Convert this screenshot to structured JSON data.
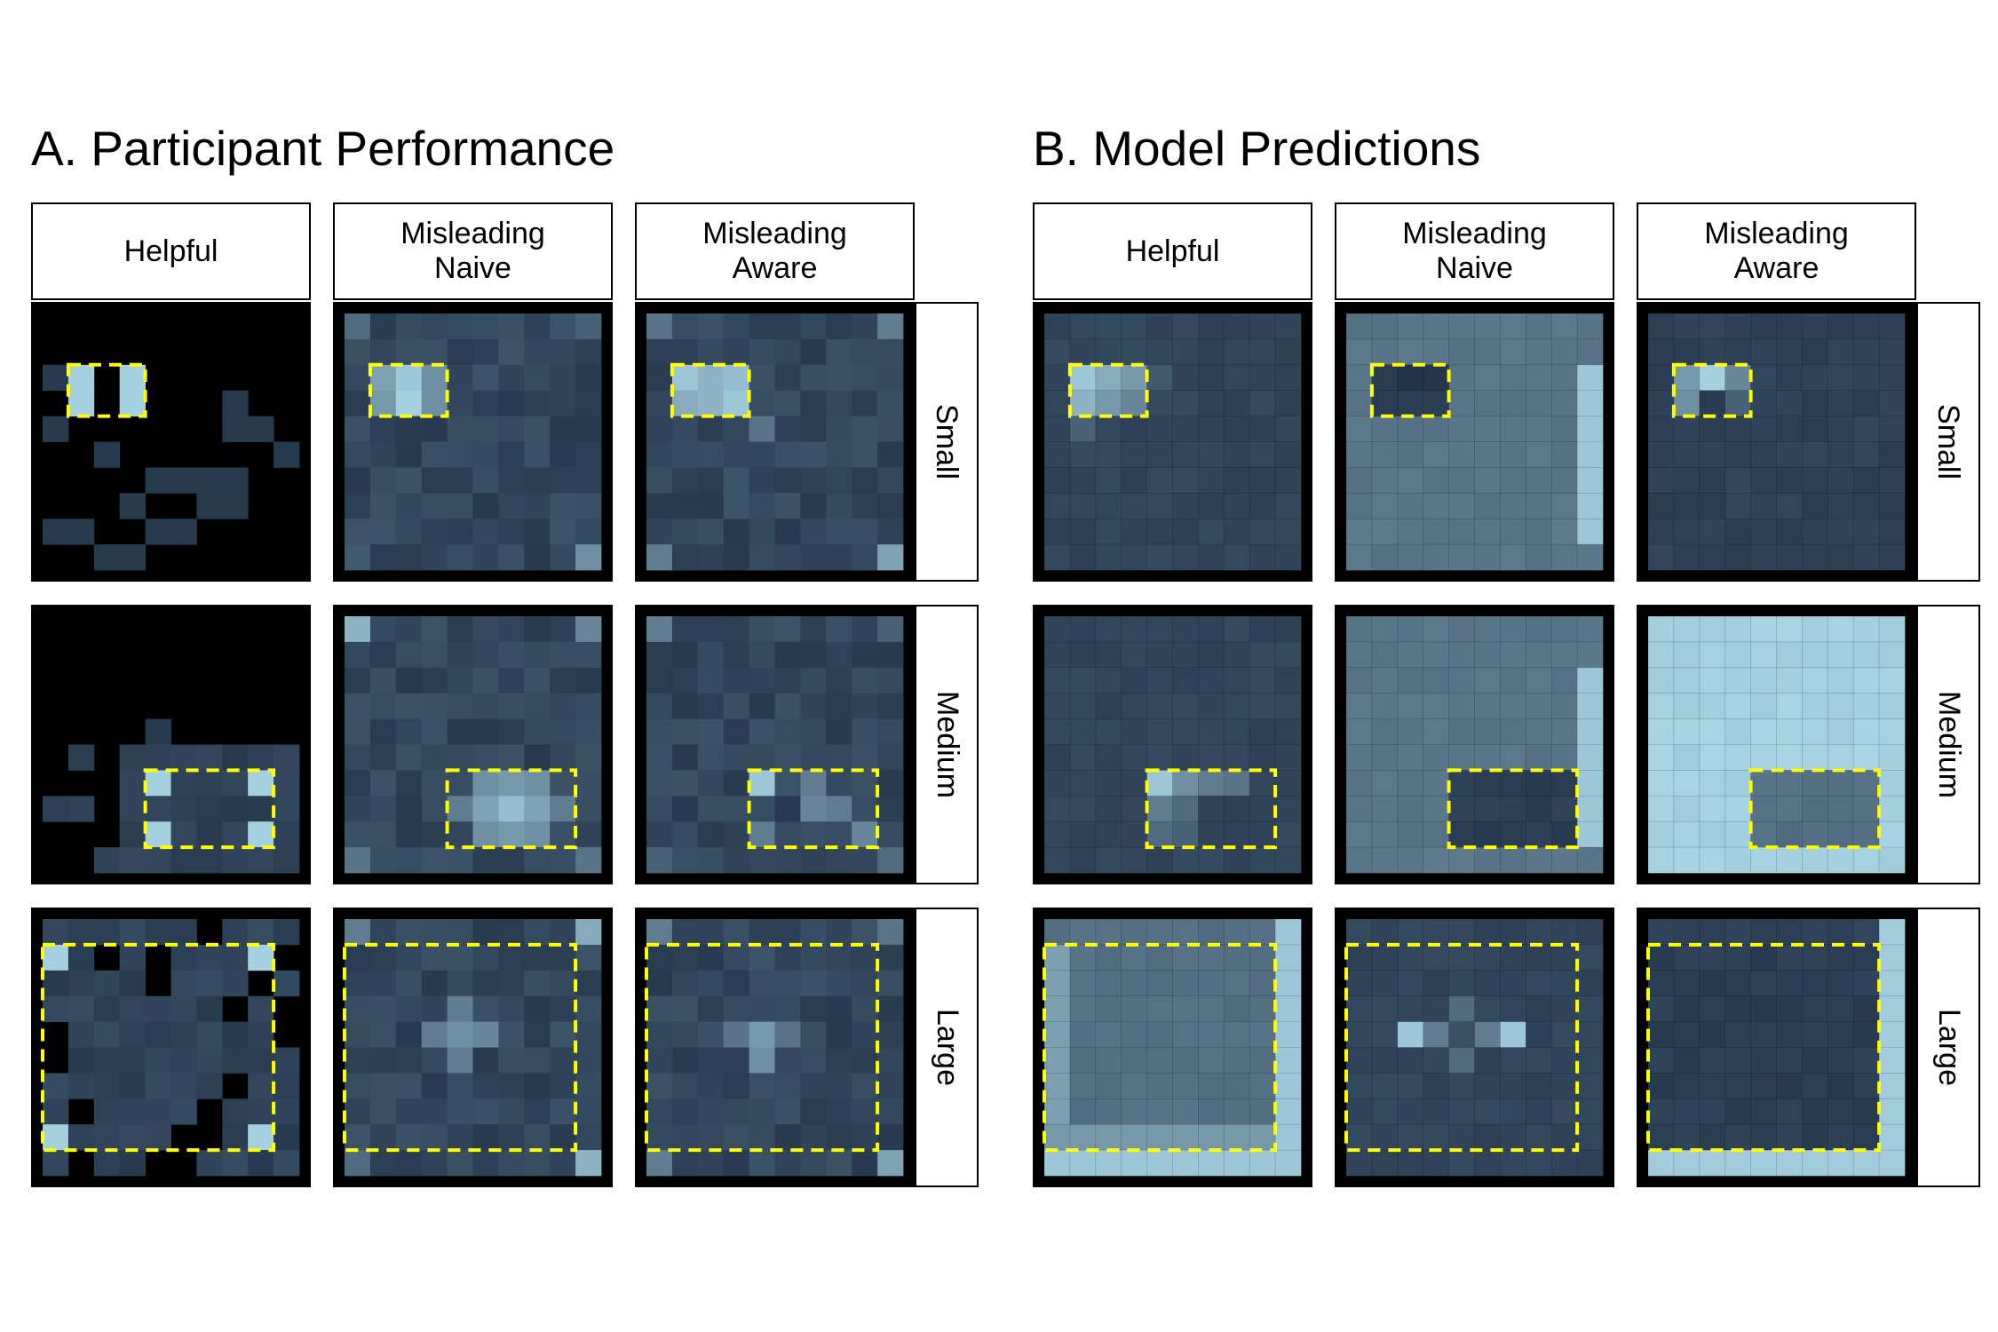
{
  "panels": [
    {
      "title": "A. Participant Performance",
      "columns": [
        "Helpful",
        "Misleading\nNaive",
        "Misleading\nAware"
      ],
      "rows": [
        "Small",
        "Medium",
        "Large"
      ]
    },
    {
      "title": "B. Model Predictions",
      "columns": [
        "Helpful",
        "Misleading\nNaive",
        "Misleading\nAware"
      ],
      "rows": [
        "Small",
        "Medium",
        "Large"
      ]
    }
  ],
  "colors": {
    "background": "#000000",
    "low": "#1a2b40",
    "high": "#b4e2f0",
    "target_outline": "#ffff00",
    "strip_border": "#000000"
  },
  "chart_data": [
    {
      "type": "heatmap",
      "title": "A. Participant Performance",
      "grid": [
        10,
        10
      ],
      "value_note": "cell shading 0 (dark) to 1 (light); null = black",
      "facets": [
        {
          "column": "Helpful",
          "row": "Small",
          "target": {
            "cols": [
              1,
              3
            ],
            "rows": [
              2,
              3
            ]
          },
          "lit": [
            [
              0,
              2
            ],
            [
              1,
              3
            ],
            [
              0,
              4
            ],
            [
              2,
              5
            ],
            [
              4,
              6
            ],
            [
              5,
              6
            ],
            [
              6,
              6
            ],
            [
              3,
              7
            ],
            [
              0,
              8
            ],
            [
              1,
              8
            ],
            [
              5,
              8
            ],
            [
              2,
              9
            ],
            [
              0,
              10
            ],
            [
              7,
              3
            ],
            [
              7,
              4
            ],
            [
              8,
              4
            ],
            [
              9,
              5
            ],
            [
              7,
              6
            ],
            [
              6,
              7
            ],
            [
              7,
              7
            ],
            [
              4,
              8
            ],
            [
              3,
              9
            ]
          ],
          "bright": [
            [
              1,
              2
            ],
            [
              3,
              2
            ],
            [
              1,
              3
            ],
            [
              3,
              3
            ]
          ]
        },
        {
          "column": "Misleading Naive",
          "row": "Small",
          "target": {
            "cols": [
              1,
              3
            ],
            "rows": [
              2,
              3
            ]
          },
          "corners": [
            0.35,
            0.3,
            0.25,
            0.55
          ],
          "peak": [
            [
              1,
              2,
              0.65
            ],
            [
              2,
              2,
              0.85
            ],
            [
              3,
              2,
              0.55
            ],
            [
              1,
              3,
              0.6
            ],
            [
              2,
              3,
              0.9
            ],
            [
              3,
              3,
              0.55
            ]
          ]
        },
        {
          "column": "Misleading Aware",
          "row": "Small",
          "target": {
            "cols": [
              1,
              3
            ],
            "rows": [
              2,
              3
            ]
          },
          "corners": [
            0.4,
            0.45,
            0.45,
            0.65
          ],
          "peak": [
            [
              1,
              2,
              0.85
            ],
            [
              2,
              2,
              0.75
            ],
            [
              3,
              2,
              0.8
            ],
            [
              1,
              3,
              0.7
            ],
            [
              2,
              3,
              0.75
            ],
            [
              3,
              3,
              0.85
            ],
            [
              4,
              4,
              0.4
            ]
          ]
        },
        {
          "column": "Helpful",
          "row": "Medium",
          "target": {
            "cols": [
              4,
              8
            ],
            "rows": [
              6,
              8
            ]
          },
          "sparse": true,
          "bright": [
            [
              4,
              6
            ],
            [
              8,
              6
            ],
            [
              4,
              8
            ],
            [
              8,
              8
            ]
          ]
        },
        {
          "column": "Misleading Naive",
          "row": "Medium",
          "target": {
            "cols": [
              4,
              8
            ],
            "rows": [
              6,
              8
            ]
          },
          "corners": [
            0.75,
            0.5,
            0.4,
            0.4
          ],
          "peak": [
            [
              5,
              6,
              0.55
            ],
            [
              6,
              6,
              0.6
            ],
            [
              7,
              6,
              0.55
            ],
            [
              5,
              7,
              0.65
            ],
            [
              6,
              7,
              0.8
            ],
            [
              7,
              7,
              0.65
            ],
            [
              5,
              8,
              0.55
            ],
            [
              6,
              8,
              0.6
            ],
            [
              7,
              8,
              0.55
            ],
            [
              4,
              7,
              0.45
            ],
            [
              8,
              7,
              0.45
            ]
          ]
        },
        {
          "column": "Misleading Aware",
          "row": "Medium",
          "target": {
            "cols": [
              4,
              8
            ],
            "rows": [
              6,
              8
            ]
          },
          "corners": [
            0.45,
            0.3,
            0.3,
            0.35
          ],
          "peak": [
            [
              4,
              6,
              0.85
            ],
            [
              6,
              6,
              0.45
            ],
            [
              6,
              7,
              0.5
            ],
            [
              7,
              7,
              0.45
            ],
            [
              4,
              8,
              0.45
            ],
            [
              8,
              8,
              0.5
            ]
          ]
        },
        {
          "column": "Helpful",
          "row": "Large",
          "target": {
            "cols": [
              0,
              8
            ],
            "rows": [
              1,
              8
            ]
          },
          "sparse_large": true,
          "bright": [
            [
              0,
              1
            ],
            [
              8,
              1
            ],
            [
              0,
              8
            ],
            [
              8,
              8
            ]
          ]
        },
        {
          "column": "Misleading Naive",
          "row": "Large",
          "target": {
            "cols": [
              0,
              8
            ],
            "rows": [
              1,
              8
            ]
          },
          "corners": [
            0.45,
            0.7,
            0.35,
            0.75
          ],
          "peak": [
            [
              4,
              3,
              0.45
            ],
            [
              3,
              4,
              0.45
            ],
            [
              4,
              4,
              0.55
            ],
            [
              5,
              4,
              0.5
            ],
            [
              4,
              5,
              0.45
            ]
          ]
        },
        {
          "column": "Misleading Aware",
          "row": "Large",
          "target": {
            "cols": [
              0,
              8
            ],
            "rows": [
              1,
              8
            ]
          },
          "corners": [
            0.45,
            0.4,
            0.45,
            0.65
          ],
          "peak": [
            [
              4,
              4,
              0.6
            ],
            [
              4,
              5,
              0.55
            ],
            [
              3,
              4,
              0.4
            ],
            [
              5,
              4,
              0.4
            ]
          ]
        }
      ]
    },
    {
      "type": "heatmap",
      "title": "B. Model Predictions",
      "grid": [
        10,
        10
      ],
      "facets": [
        {
          "column": "Helpful",
          "row": "Small",
          "target": {
            "cols": [
              1,
              3
            ],
            "rows": [
              2,
              3
            ]
          },
          "base": 0.12,
          "peak": [
            [
              1,
              2,
              0.85
            ],
            [
              2,
              2,
              0.7
            ],
            [
              3,
              2,
              0.6
            ],
            [
              1,
              3,
              0.75
            ],
            [
              2,
              3,
              0.6
            ],
            [
              3,
              3,
              0.5
            ],
            [
              1,
              4,
              0.3
            ],
            [
              4,
              2,
              0.25
            ]
          ]
        },
        {
          "column": "Misleading Naive",
          "row": "Small",
          "target": {
            "cols": [
              1,
              3
            ],
            "rows": [
              2,
              3
            ]
          },
          "base": 0.38,
          "right_edge": 0.85,
          "target_value": 0.05
        },
        {
          "column": "Misleading Aware",
          "row": "Small",
          "target": {
            "cols": [
              1,
              3
            ],
            "rows": [
              2,
              3
            ]
          },
          "base": 0.1,
          "peak": [
            [
              1,
              2,
              0.6
            ],
            [
              2,
              2,
              0.9
            ],
            [
              3,
              2,
              0.5
            ],
            [
              1,
              3,
              0.55
            ],
            [
              2,
              3,
              0.1
            ],
            [
              3,
              3,
              0.3
            ]
          ]
        },
        {
          "column": "Helpful",
          "row": "Medium",
          "target": {
            "cols": [
              4,
              8
            ],
            "rows": [
              6,
              8
            ]
          },
          "base": 0.12,
          "peak": [
            [
              4,
              6,
              0.85
            ],
            [
              5,
              6,
              0.55
            ],
            [
              6,
              6,
              0.45
            ],
            [
              7,
              6,
              0.4
            ],
            [
              4,
              7,
              0.45
            ],
            [
              5,
              7,
              0.35
            ],
            [
              4,
              8,
              0.35
            ],
            [
              5,
              8,
              0.3
            ]
          ]
        },
        {
          "column": "Misleading Naive",
          "row": "Medium",
          "target": {
            "cols": [
              4,
              8
            ],
            "rows": [
              6,
              8
            ]
          },
          "base": 0.38,
          "right_edge": 0.85,
          "target_value": 0.08
        },
        {
          "column": "Misleading Aware",
          "row": "Medium",
          "target": {
            "cols": [
              4,
              8
            ],
            "rows": [
              6,
              8
            ]
          },
          "base": 0.88,
          "target_value": 0.35
        },
        {
          "column": "Helpful",
          "row": "Large",
          "target": {
            "cols": [
              0,
              8
            ],
            "rows": [
              1,
              8
            ]
          },
          "base": 0.35,
          "border": 0.85
        },
        {
          "column": "Misleading Naive",
          "row": "Large",
          "target": {
            "cols": [
              0,
              8
            ],
            "rows": [
              1,
              8
            ]
          },
          "base": 0.12,
          "peak": [
            [
              2,
              4,
              0.85
            ],
            [
              6,
              4,
              0.85
            ],
            [
              3,
              4,
              0.45
            ],
            [
              5,
              4,
              0.45
            ],
            [
              4,
              3,
              0.35
            ],
            [
              4,
              5,
              0.35
            ],
            [
              4,
              4,
              0.2
            ]
          ]
        },
        {
          "column": "Misleading Aware",
          "row": "Large",
          "target": {
            "cols": [
              0,
              8
            ],
            "rows": [
              1,
              8
            ]
          },
          "base": 0.1,
          "border": 0.88,
          "target_value": 0.08
        }
      ]
    }
  ]
}
